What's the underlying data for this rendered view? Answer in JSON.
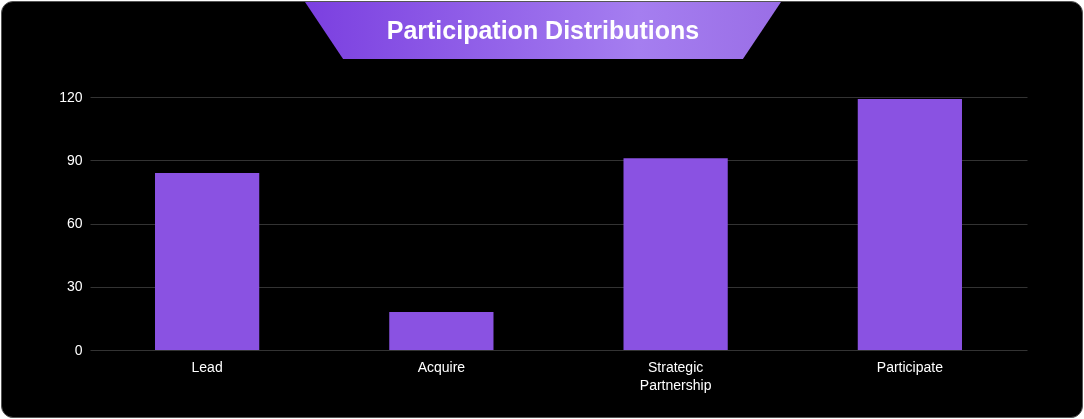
{
  "chart_data": {
    "type": "bar",
    "title": "Participation Distributions",
    "categories": [
      "Lead",
      "Acquire",
      "Strategic Partnership",
      "Participate"
    ],
    "values": [
      84,
      18,
      91,
      119
    ],
    "color": "#8a52e2",
    "ylim": [
      0,
      120
    ],
    "yticks": [
      0,
      30,
      60,
      90,
      120
    ],
    "grid": "y"
  }
}
